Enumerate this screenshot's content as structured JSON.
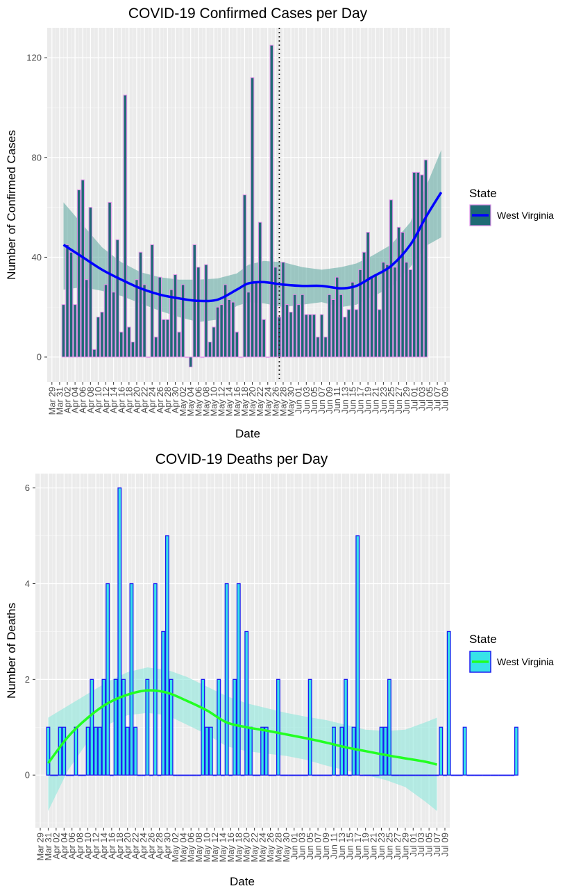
{
  "chart_data": [
    {
      "type": "bar",
      "title": "COVID-19 Confirmed Cases per Day",
      "xlabel": "Date",
      "ylabel": "Number of Confirmed Cases",
      "ylim": [
        -10,
        132
      ],
      "yticks": [
        0,
        40,
        80,
        120
      ],
      "x_start": "2020-03-29",
      "x_end": "2020-07-09",
      "xtick_labels": [
        "Mar 29",
        "Mar 31",
        "Apr 02",
        "Apr 04",
        "Apr 06",
        "Apr 08",
        "Apr 10",
        "Apr 12",
        "Apr 14",
        "Apr 16",
        "Apr 18",
        "Apr 20",
        "Apr 22",
        "Apr 24",
        "Apr 26",
        "Apr 28",
        "Apr 30",
        "May 02",
        "May 04",
        "May 06",
        "May 08",
        "May 10",
        "May 12",
        "May 14",
        "May 16",
        "May 18",
        "May 20",
        "May 22",
        "May 24",
        "May 26",
        "May 28",
        "May 30",
        "Jun 01",
        "Jun 03",
        "Jun 05",
        "Jun 07",
        "Jun 09",
        "Jun 11",
        "Jun 13",
        "Jun 15",
        "Jun 17",
        "Jun 19",
        "Jun 21",
        "Jun 23",
        "Jun 25",
        "Jun 27",
        "Jun 29",
        "Jul 01",
        "Jul 03",
        "Jul 05",
        "Jul 07",
        "Jul 09"
      ],
      "bar_fill": "#1f6b75",
      "bar_outline": "#e08ee8",
      "smooth_color": "#0000ff",
      "ribbon_color": "#5aa59e",
      "vline": "2020-05-27",
      "legend": {
        "title": "State",
        "label": "West Virginia",
        "position": "right"
      },
      "series": [
        {
          "name": "West Virginia",
          "x_start": "2020-04-01",
          "values": [
            21,
            45,
            42,
            21,
            67,
            71,
            31,
            60,
            3,
            16,
            18,
            29,
            62,
            26,
            47,
            10,
            105,
            12,
            6,
            31,
            42,
            29,
            0,
            45,
            8,
            32,
            15,
            15,
            27,
            33,
            10,
            29,
            0,
            -4,
            45,
            36,
            0,
            37,
            6,
            12,
            20,
            21,
            29,
            23,
            22,
            10,
            0,
            65,
            26,
            112,
            30,
            54,
            15,
            0,
            125,
            36,
            16,
            38,
            21,
            18,
            25,
            21,
            25,
            17,
            17,
            17,
            8,
            17,
            8,
            25,
            23,
            32,
            25,
            16,
            19,
            30,
            19,
            35,
            42,
            50,
            32,
            33,
            19,
            38,
            37,
            63,
            36,
            52,
            50,
            38,
            35,
            74,
            74,
            73,
            79
          ],
          "smooth": [
            [
              0,
              45
            ],
            [
              5,
              40
            ],
            [
              10,
              35
            ],
            [
              15,
              31
            ],
            [
              20,
              27.5
            ],
            [
              25,
              25
            ],
            [
              30,
              23.5
            ],
            [
              35,
              22.5
            ],
            [
              40,
              23
            ],
            [
              45,
              27
            ],
            [
              48,
              29.5
            ],
            [
              52,
              30
            ],
            [
              57,
              29
            ],
            [
              62,
              28.5
            ],
            [
              67,
              28.5
            ],
            [
              72,
              27.5
            ],
            [
              76,
              28.5
            ],
            [
              80,
              32
            ],
            [
              85,
              36.5
            ],
            [
              90,
              45
            ],
            [
              94,
              56
            ],
            [
              98,
              66
            ]
          ],
          "band_upper": [
            [
              0,
              62
            ],
            [
              5,
              53
            ],
            [
              10,
              44
            ],
            [
              15,
              38
            ],
            [
              20,
              34
            ],
            [
              25,
              32
            ],
            [
              30,
              31
            ],
            [
              35,
              31
            ],
            [
              40,
              31.5
            ],
            [
              45,
              33.5
            ],
            [
              48,
              37
            ],
            [
              52,
              38.5
            ],
            [
              57,
              38
            ],
            [
              62,
              36
            ],
            [
              67,
              35
            ],
            [
              72,
              36
            ],
            [
              76,
              37.5
            ],
            [
              80,
              40.5
            ],
            [
              85,
              45
            ],
            [
              90,
              54
            ],
            [
              94,
              68
            ],
            [
              98,
              83
            ]
          ],
          "band_lower": [
            [
              0,
              27
            ],
            [
              5,
              28
            ],
            [
              10,
              26.5
            ],
            [
              15,
              24.5
            ],
            [
              20,
              21.5
            ],
            [
              25,
              18.5
            ],
            [
              30,
              16
            ],
            [
              35,
              14
            ],
            [
              40,
              15
            ],
            [
              45,
              20.5
            ],
            [
              48,
              22
            ],
            [
              52,
              21.5
            ],
            [
              57,
              20
            ],
            [
              62,
              21
            ],
            [
              67,
              22
            ],
            [
              72,
              20
            ],
            [
              76,
              21
            ],
            [
              80,
              24
            ],
            [
              85,
              28
            ],
            [
              90,
              36
            ],
            [
              94,
              44.5
            ],
            [
              98,
              48
            ]
          ]
        }
      ]
    },
    {
      "type": "bar",
      "title": "COVID-19 Deaths per Day",
      "xlabel": "Date",
      "ylabel": "Number of Deaths",
      "ylim": [
        -1.1,
        6.3
      ],
      "yticks": [
        0,
        2,
        4,
        6
      ],
      "x_start": "2020-03-29",
      "x_end": "2020-07-09",
      "xtick_labels": [
        "Mar 29",
        "Mar 31",
        "Apr 02",
        "Apr 04",
        "Apr 06",
        "Apr 08",
        "Apr 10",
        "Apr 12",
        "Apr 14",
        "Apr 16",
        "Apr 18",
        "Apr 20",
        "Apr 22",
        "Apr 24",
        "Apr 26",
        "Apr 28",
        "Apr 30",
        "May 02",
        "May 04",
        "May 06",
        "May 08",
        "May 10",
        "May 12",
        "May 14",
        "May 16",
        "May 18",
        "May 20",
        "May 22",
        "May 24",
        "May 26",
        "May 28",
        "May 30",
        "Jun 01",
        "Jun 03",
        "Jun 05",
        "Jun 07",
        "Jun 09",
        "Jun 11",
        "Jun 13",
        "Jun 15",
        "Jun 17",
        "Jun 19",
        "Jun 21",
        "Jun 23",
        "Jun 25",
        "Jun 27",
        "Jun 29",
        "Jul 01",
        "Jul 03",
        "Jul 05",
        "Jul 07",
        "Jul 09"
      ],
      "bar_fill": "#38e3e8",
      "bar_outline": "#1c1cf0",
      "smooth_color": "#22ff22",
      "ribbon_color": "#8ee8dc",
      "legend": {
        "title": "State",
        "label": "West Virginia",
        "position": "right"
      },
      "series": [
        {
          "name": "West Virginia",
          "x_start": "2020-03-31",
          "values": [
            1,
            0,
            0,
            1,
            1,
            0,
            0,
            1,
            0,
            0,
            1,
            2,
            1,
            1,
            2,
            4,
            0,
            2,
            6,
            2,
            1,
            4,
            1,
            0,
            0,
            2,
            0,
            4,
            0,
            3,
            5,
            2,
            0,
            0,
            0,
            0,
            0,
            0,
            0,
            2,
            1,
            1,
            0,
            2,
            0,
            4,
            0,
            2,
            4,
            0,
            3,
            1,
            0,
            0,
            1,
            1,
            0,
            0,
            2,
            0,
            0,
            0,
            0,
            0,
            0,
            0,
            2,
            0,
            0,
            0,
            0,
            0,
            1,
            0,
            1,
            2,
            0,
            1,
            5,
            0,
            0,
            0,
            0,
            0,
            1,
            1,
            2,
            0,
            0,
            0,
            0,
            0,
            0,
            0,
            0,
            0,
            0,
            0,
            0,
            1,
            0,
            3,
            0,
            0,
            0,
            1,
            0,
            0,
            0,
            0,
            0,
            0,
            0,
            0,
            0,
            0,
            0,
            0,
            1
          ],
          "smooth": [
            [
              0,
              0.25
            ],
            [
              5,
              0.8
            ],
            [
              10,
              1.2
            ],
            [
              15,
              1.5
            ],
            [
              20,
              1.68
            ],
            [
              25,
              1.77
            ],
            [
              30,
              1.72
            ],
            [
              35,
              1.55
            ],
            [
              40,
              1.35
            ],
            [
              45,
              1.1
            ],
            [
              50,
              1.0
            ],
            [
              55,
              0.93
            ],
            [
              60,
              0.85
            ],
            [
              65,
              0.77
            ],
            [
              70,
              0.68
            ],
            [
              75,
              0.58
            ],
            [
              80,
              0.5
            ],
            [
              85,
              0.42
            ],
            [
              90,
              0.35
            ],
            [
              95,
              0.28
            ],
            [
              98,
              0.22
            ]
          ],
          "band_upper": [
            [
              0,
              1.2
            ],
            [
              5,
              1.45
            ],
            [
              10,
              1.7
            ],
            [
              15,
              1.95
            ],
            [
              20,
              2.15
            ],
            [
              25,
              2.25
            ],
            [
              30,
              2.2
            ],
            [
              35,
              2.05
            ],
            [
              40,
              1.85
            ],
            [
              45,
              1.65
            ],
            [
              50,
              1.5
            ],
            [
              55,
              1.4
            ],
            [
              60,
              1.3
            ],
            [
              65,
              1.22
            ],
            [
              70,
              1.15
            ],
            [
              75,
              1.05
            ],
            [
              80,
              0.95
            ],
            [
              85,
              0.92
            ],
            [
              90,
              0.95
            ],
            [
              95,
              1.1
            ],
            [
              98,
              1.2
            ]
          ],
          "band_lower": [
            [
              0,
              -0.75
            ],
            [
              5,
              0.1
            ],
            [
              10,
              0.7
            ],
            [
              15,
              1.05
            ],
            [
              20,
              1.25
            ],
            [
              25,
              1.3
            ],
            [
              30,
              1.25
            ],
            [
              35,
              1.05
            ],
            [
              40,
              0.85
            ],
            [
              45,
              0.6
            ],
            [
              50,
              0.5
            ],
            [
              55,
              0.45
            ],
            [
              60,
              0.4
            ],
            [
              65,
              0.32
            ],
            [
              70,
              0.2
            ],
            [
              75,
              0.1
            ],
            [
              80,
              0.0
            ],
            [
              85,
              -0.1
            ],
            [
              90,
              -0.25
            ],
            [
              95,
              -0.55
            ],
            [
              98,
              -0.75
            ]
          ]
        }
      ]
    }
  ]
}
